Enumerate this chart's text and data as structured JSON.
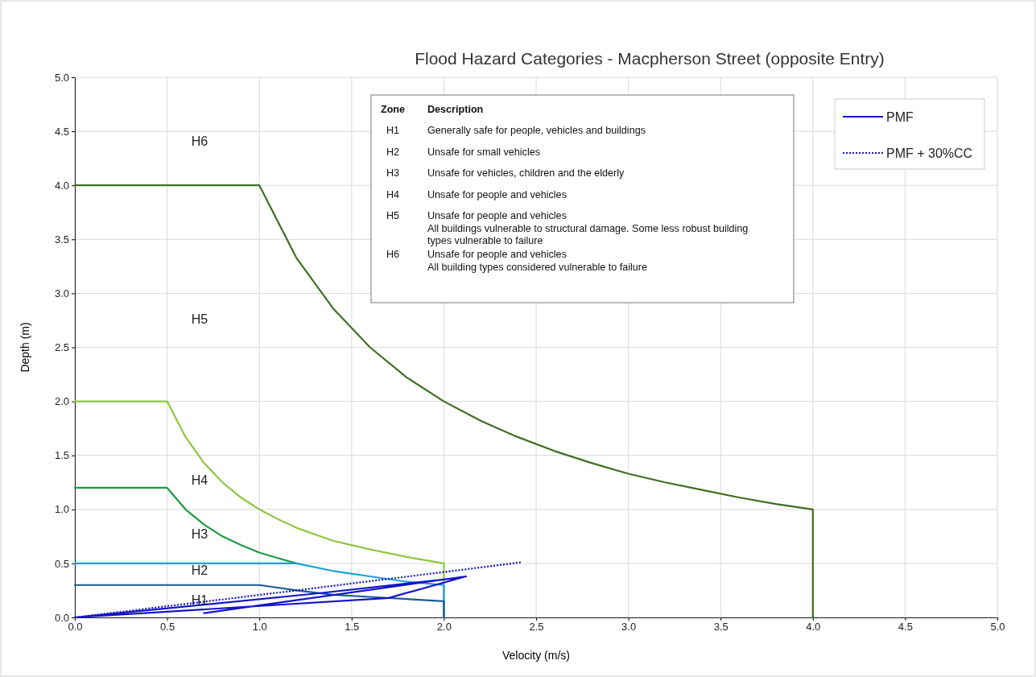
{
  "chart_data": {
    "type": "line",
    "title": "Flood Hazard Categories - Macpherson Street (opposite Entry)",
    "xlabel": "Velocity (m/s)",
    "ylabel": "Depth (m)",
    "xlim": [
      0,
      5
    ],
    "ylim": [
      0,
      5
    ],
    "xticks": [
      {
        "value": 0,
        "label": "0.0"
      },
      {
        "value": 0.5,
        "label": "0.5"
      },
      {
        "value": 1,
        "label": "1.0"
      },
      {
        "value": 1.5,
        "label": "1.5"
      },
      {
        "value": 2,
        "label": "2.0"
      },
      {
        "value": 2.5,
        "label": "2.5"
      },
      {
        "value": 3,
        "label": "3.0"
      },
      {
        "value": 3.5,
        "label": "3.5"
      },
      {
        "value": 4,
        "label": "4.0"
      },
      {
        "value": 4.5,
        "label": "4.5"
      },
      {
        "value": 5,
        "label": "5.0"
      }
    ],
    "yticks": [
      {
        "value": 0,
        "label": "0.0"
      },
      {
        "value": 0.5,
        "label": "0.5"
      },
      {
        "value": 1,
        "label": "1.0"
      },
      {
        "value": 1.5,
        "label": "1.5"
      },
      {
        "value": 2,
        "label": "2.0"
      },
      {
        "value": 2.5,
        "label": "2.5"
      },
      {
        "value": 3,
        "label": "3.0"
      },
      {
        "value": 3.5,
        "label": "3.5"
      },
      {
        "value": 4,
        "label": "4.0"
      },
      {
        "value": 4.5,
        "label": "4.5"
      },
      {
        "value": 5,
        "label": "5.0"
      }
    ],
    "grid": true,
    "legend": "top right",
    "marker": "none",
    "line_style": "solid",
    "series": [
      {
        "color": "#3f6f23",
        "x": [
          0,
          1,
          1.2,
          1.4,
          1.6,
          1.8,
          2,
          2.2,
          2.4,
          2.6,
          2.8,
          3,
          3.2,
          3.4,
          3.6,
          3.8,
          4,
          4
        ],
        "values": [
          4,
          4,
          3.33,
          2.86,
          2.5,
          2.22,
          2,
          1.82,
          1.67,
          1.54,
          1.43,
          1.33,
          1.25,
          1.18,
          1.11,
          1.05,
          1,
          0
        ]
      },
      {
        "color": "#8dc63f",
        "x": [
          0,
          0.5,
          0.6,
          0.7,
          0.8,
          0.9,
          1,
          1.1,
          1.2,
          1.3,
          1.4,
          1.5,
          1.6,
          1.8,
          2,
          2
        ],
        "values": [
          2,
          2,
          1.67,
          1.43,
          1.25,
          1.11,
          1,
          0.91,
          0.83,
          0.77,
          0.71,
          0.67,
          0.63,
          0.56,
          0.5,
          0
        ]
      },
      {
        "color": "#1e9a48",
        "x": [
          0,
          0.5,
          0.6,
          0.7,
          0.8,
          0.9,
          1,
          1.1,
          1.2
        ],
        "values": [
          1.2,
          1.2,
          1,
          0.86,
          0.75,
          0.67,
          0.6,
          0.55,
          0.5
        ]
      },
      {
        "color": "#1ba1d8",
        "x": [
          0,
          1.2,
          1.4,
          1.6,
          1.8,
          2,
          2
        ],
        "values": [
          0.5,
          0.5,
          0.43,
          0.38,
          0.33,
          0.3,
          0
        ]
      },
      {
        "color": "#1a5a9a",
        "x": [
          0,
          1,
          1.2,
          1.4,
          1.6,
          1.8,
          2,
          2
        ],
        "values": [
          0.3,
          0.3,
          0.25,
          0.21,
          0.19,
          0.17,
          0.15,
          0
        ]
      },
      {
        "name": "PMF",
        "color": "#1414c8",
        "x": [
          0.7,
          2.12,
          1.7,
          0,
          1.3,
          2.05
        ],
        "values": [
          0.04,
          0.38,
          0.18,
          0,
          0.22,
          0.36
        ]
      },
      {
        "name": "PMF + 30%CC",
        "color": "#1414c8",
        "line_style": "dotted",
        "x": [
          0,
          1.2,
          2.42
        ],
        "values": [
          0,
          0.25,
          0.51
        ]
      }
    ],
    "annotations": [
      "H6",
      "H5",
      "H4",
      "H3",
      "H2",
      "H1",
      "Zone",
      "Description",
      "H1",
      "Generally safe for people, vehicles and buildings",
      "H2",
      "Unsafe for small vehicles",
      "H3",
      "Unsafe for vehicles, children and the elderly",
      "H4",
      "Unsafe for people and vehicles",
      "H5",
      "Unsafe for people and vehicles",
      "All buildings vulnerable to structural damage. Some less robust building types vulnerable to failure",
      "H6",
      "Unsafe for people and vehicles",
      "All building types considered vulnerable to failure"
    ]
  }
}
